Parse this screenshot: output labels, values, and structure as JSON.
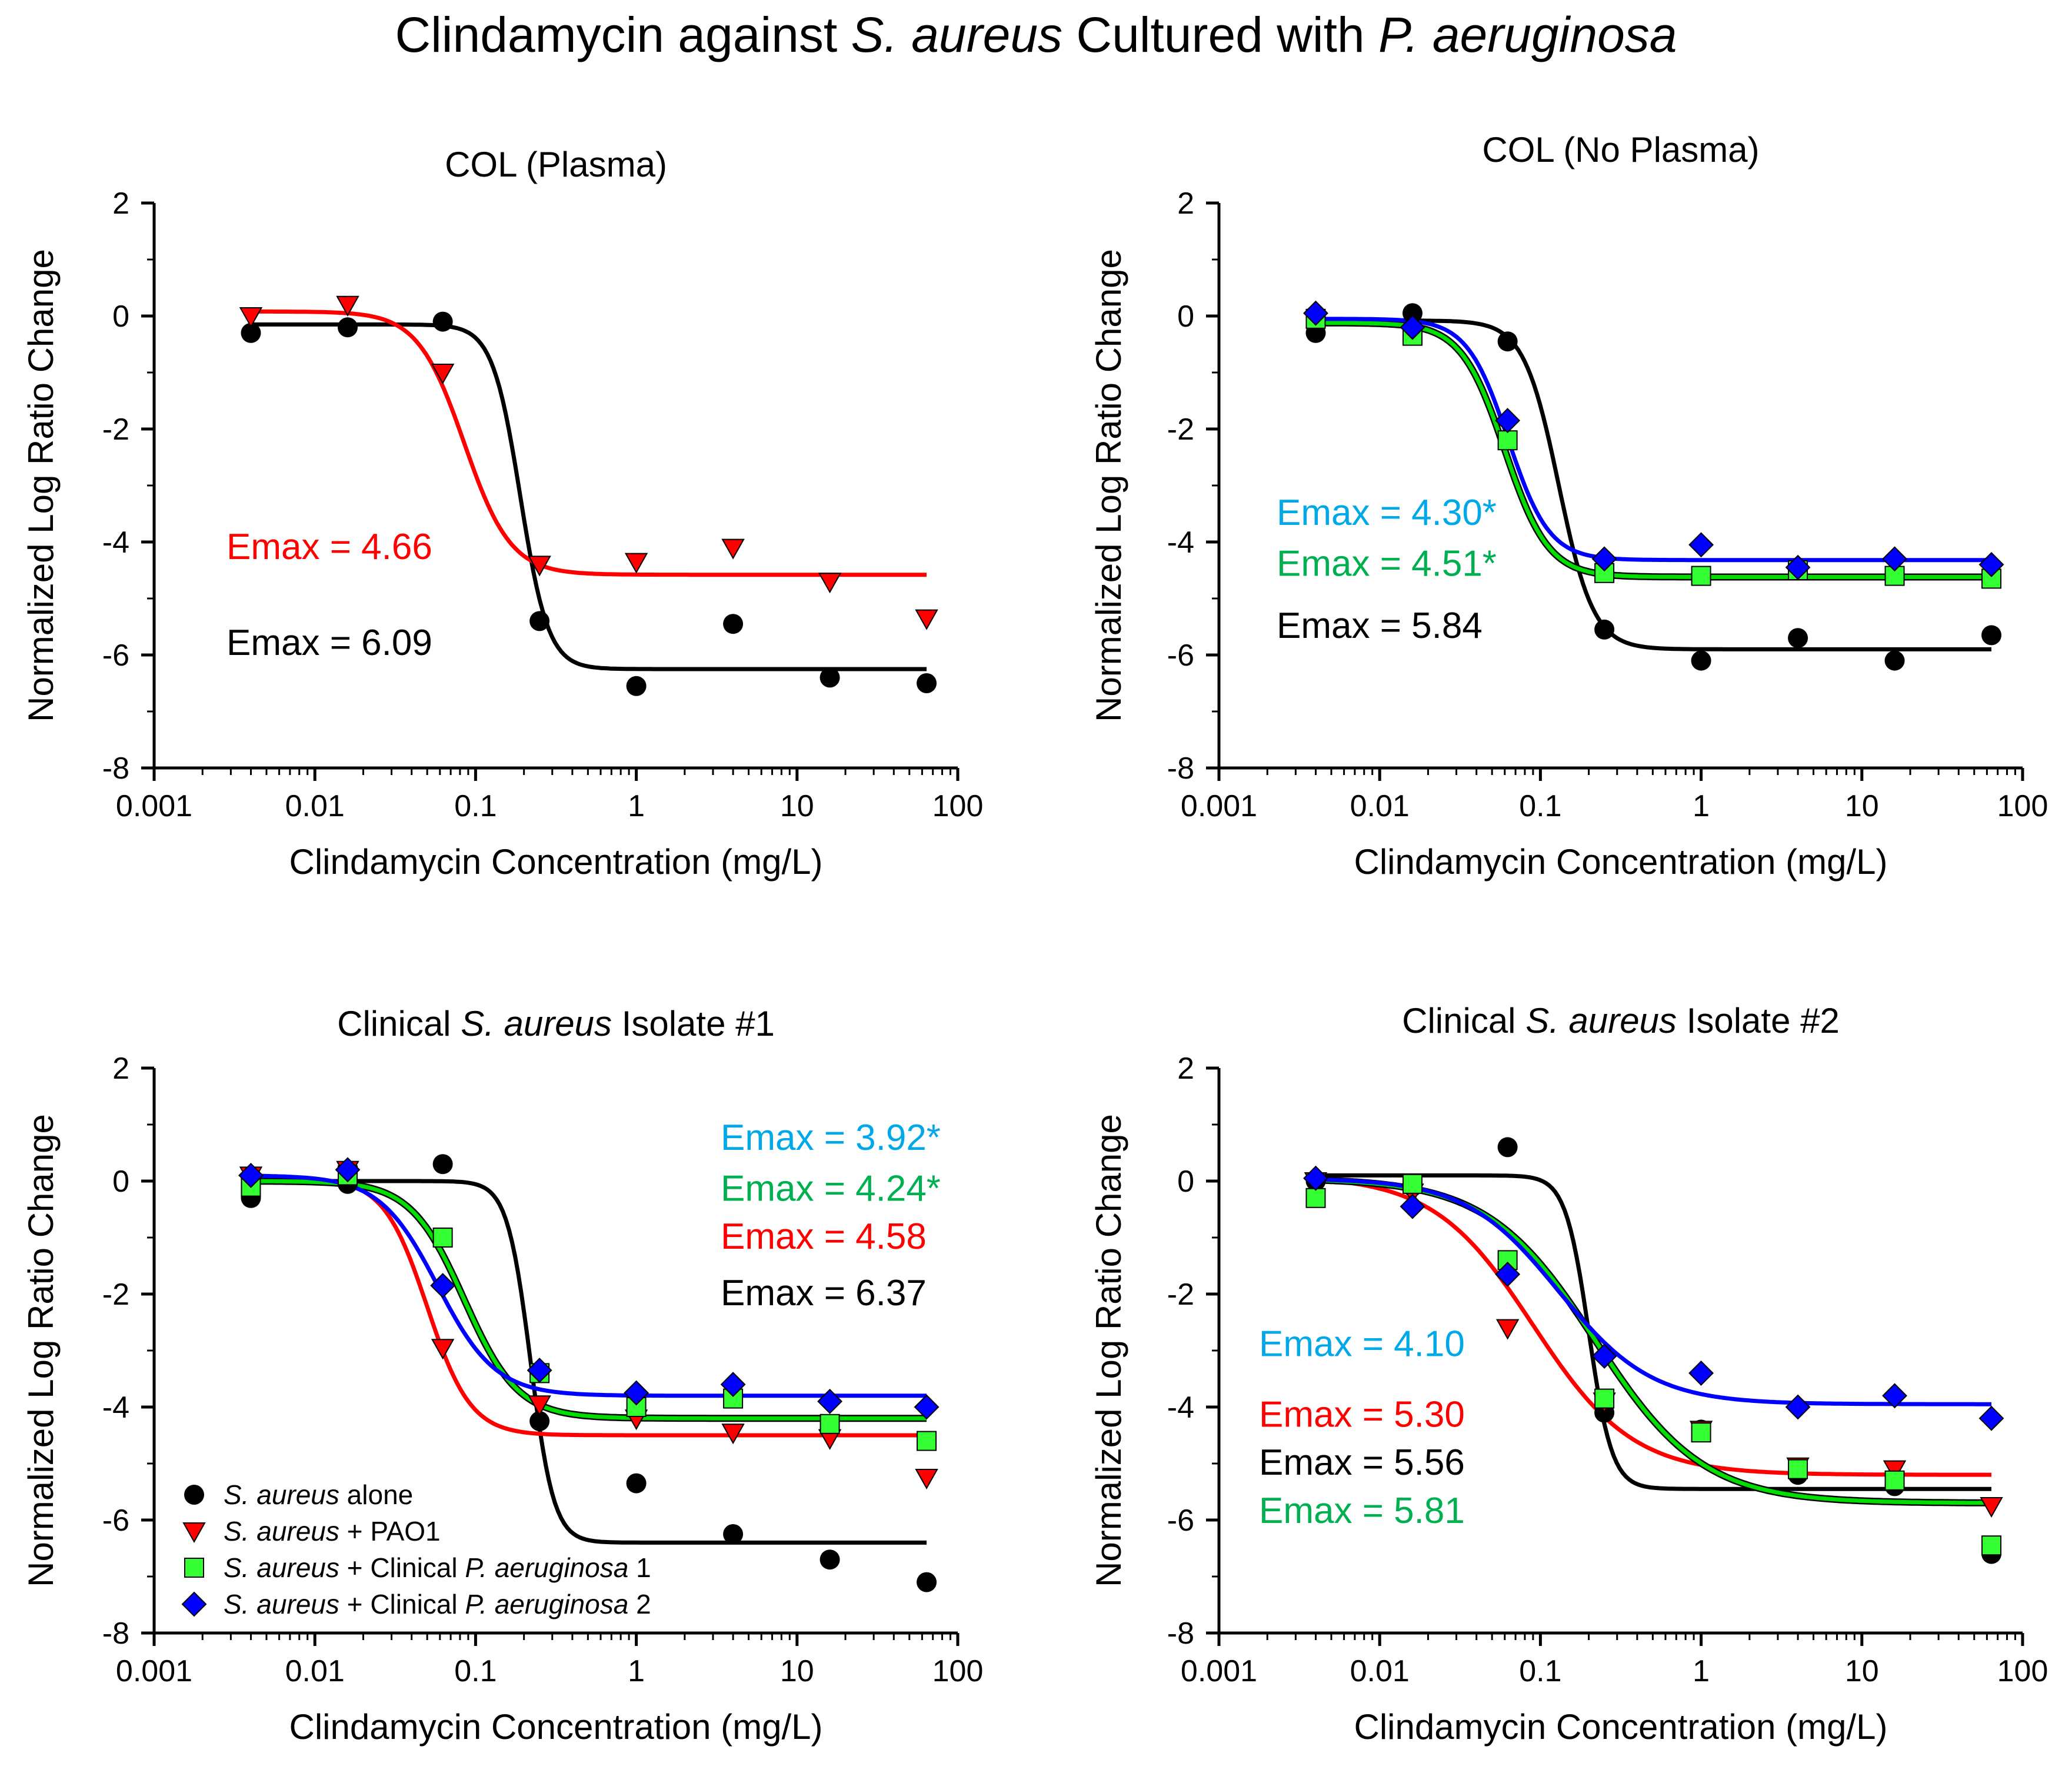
{
  "figure": {
    "title_parts": [
      {
        "text": "Clindamycin against ",
        "italic": false
      },
      {
        "text": "S. aureus",
        "italic": true
      },
      {
        "text": " Cultured with ",
        "italic": false
      },
      {
        "text": "P. aeruginosa",
        "italic": true
      }
    ]
  },
  "colors": {
    "black": "#000000",
    "red": "#ff0000",
    "green": "#00dd00",
    "blue": "#0000ff",
    "emax_cyan": "#00a8e8",
    "emax_green": "#00b050",
    "square_fill": "#33ff33"
  },
  "legend": {
    "items": [
      {
        "series": "alone",
        "marker": "circle",
        "parts": [
          {
            "text": "S. aureus",
            "italic": true
          },
          {
            "text": " alone",
            "italic": false
          }
        ]
      },
      {
        "series": "pao1",
        "marker": "triangle",
        "parts": [
          {
            "text": "S. aureus",
            "italic": true
          },
          {
            "text": " + PAO1",
            "italic": false
          }
        ]
      },
      {
        "series": "cpa1",
        "marker": "square",
        "parts": [
          {
            "text": "S. aureus",
            "italic": true
          },
          {
            "text": " + Clinical ",
            "italic": false
          },
          {
            "text": "P. aeruginosa",
            "italic": true
          },
          {
            "text": " 1",
            "italic": false
          }
        ]
      },
      {
        "series": "cpa2",
        "marker": "diamond",
        "parts": [
          {
            "text": "S. aureus",
            "italic": true
          },
          {
            "text": " + Clinical ",
            "italic": false
          },
          {
            "text": "P. aeruginosa",
            "italic": true
          },
          {
            "text": " 2",
            "italic": false
          }
        ]
      }
    ]
  },
  "chart_data": [
    {
      "type": "scatter",
      "title_parts": [
        {
          "text": "COL (Plasma)",
          "italic": false
        }
      ],
      "xlabel": "Clindamycin Concentration (mg/L)",
      "ylabel": "Normalized Log Ratio Change",
      "xscale": "log",
      "xlim": [
        0.001,
        100
      ],
      "ylim": [
        -8,
        2
      ],
      "x_ticks": [
        "0.001",
        "0.01",
        "0.1",
        "1",
        "10",
        "100"
      ],
      "y_ticks": [
        "2",
        "0",
        "-2",
        "-4",
        "-6",
        "-8"
      ],
      "series": [
        {
          "name": "alone",
          "marker": "circle",
          "x": [
            0.004,
            0.016,
            0.0625,
            0.25,
            1,
            4,
            16,
            64
          ],
          "y": [
            -0.3,
            -0.2,
            -0.1,
            -5.4,
            -6.55,
            -5.45,
            -6.4,
            -6.5
          ],
          "fit": {
            "top": -0.15,
            "bottom": -6.25,
            "ec50": 0.19,
            "hill": 5.0
          }
        },
        {
          "name": "pao1",
          "marker": "triangle",
          "x": [
            0.004,
            0.016,
            0.0625,
            0.25,
            1,
            4,
            16,
            64
          ],
          "y": [
            0.0,
            0.2,
            -1.0,
            -4.4,
            -4.35,
            -4.1,
            -4.7,
            -5.35
          ],
          "fit": {
            "top": 0.08,
            "bottom": -4.58,
            "ec50": 0.085,
            "hill": 3.0
          }
        }
      ],
      "emax_labels": [
        {
          "text": "Emax = 4.66",
          "series": "pao1",
          "y": -4.3
        },
        {
          "text": "Emax = 6.09",
          "series": "alone",
          "y": -6.0
        }
      ]
    },
    {
      "type": "scatter",
      "title_parts": [
        {
          "text": "COL (No Plasma)",
          "italic": false
        }
      ],
      "xlabel": "Clindamycin Concentration (mg/L)",
      "ylabel": "Normalized Log Ratio Change",
      "xscale": "log",
      "xlim": [
        0.001,
        100
      ],
      "ylim": [
        -8,
        2
      ],
      "x_ticks": [
        "0.001",
        "0.01",
        "0.1",
        "1",
        "10",
        "100"
      ],
      "y_ticks": [
        "2",
        "0",
        "-2",
        "-4",
        "-6",
        "-8"
      ],
      "series": [
        {
          "name": "alone",
          "marker": "circle",
          "x": [
            0.004,
            0.016,
            0.0625,
            0.25,
            1,
            4,
            16,
            64
          ],
          "y": [
            -0.3,
            0.05,
            -0.45,
            -5.55,
            -6.1,
            -5.7,
            -6.1,
            -5.65
          ],
          "fit": {
            "top": -0.08,
            "bottom": -5.9,
            "ec50": 0.13,
            "hill": 4.0
          }
        },
        {
          "name": "cpa1",
          "marker": "square",
          "x": [
            0.004,
            0.016,
            0.0625,
            0.25,
            1,
            4,
            16,
            64
          ],
          "y": [
            -0.05,
            -0.35,
            -2.2,
            -4.55,
            -4.6,
            -4.5,
            -4.6,
            -4.65
          ],
          "fit": {
            "top": -0.12,
            "bottom": -4.62,
            "ec50": 0.06,
            "hill": 3.2
          }
        },
        {
          "name": "cpa2",
          "marker": "diamond",
          "x": [
            0.004,
            0.016,
            0.0625,
            0.25,
            1,
            4,
            16,
            64
          ],
          "y": [
            0.05,
            -0.2,
            -1.85,
            -4.3,
            -4.05,
            -4.45,
            -4.3,
            -4.4
          ],
          "fit": {
            "top": -0.05,
            "bottom": -4.32,
            "ec50": 0.063,
            "hill": 3.4
          }
        }
      ],
      "emax_labels": [
        {
          "text": "Emax = 4.30*",
          "series": "cyan",
          "y": -3.7
        },
        {
          "text": "Emax = 4.51*",
          "series": "green",
          "y": -4.6
        },
        {
          "text": "Emax = 5.84",
          "series": "alone",
          "y": -5.7
        }
      ]
    },
    {
      "type": "scatter",
      "title_parts": [
        {
          "text": "Clinical ",
          "italic": false
        },
        {
          "text": "S. aureus",
          "italic": true
        },
        {
          "text": " Isolate #1",
          "italic": false
        }
      ],
      "xlabel": "Clindamycin Concentration (mg/L)",
      "ylabel": "Normalized Log Ratio Change",
      "xscale": "log",
      "xlim": [
        0.001,
        100
      ],
      "ylim": [
        -8,
        2
      ],
      "x_ticks": [
        "0.001",
        "0.01",
        "0.1",
        "1",
        "10",
        "100"
      ],
      "y_ticks": [
        "2",
        "0",
        "-2",
        "-4",
        "-6",
        "-8"
      ],
      "series": [
        {
          "name": "alone",
          "marker": "circle",
          "x": [
            0.004,
            0.016,
            0.0625,
            0.25,
            1,
            4,
            16,
            64
          ],
          "y": [
            -0.3,
            -0.05,
            0.3,
            -4.25,
            -5.35,
            -6.25,
            -6.7,
            -7.1
          ],
          "fit": {
            "top": 0.0,
            "bottom": -6.4,
            "ec50": 0.22,
            "hill": 6.0
          }
        },
        {
          "name": "pao1",
          "marker": "triangle",
          "x": [
            0.004,
            0.016,
            0.0625,
            0.25,
            1,
            4,
            16,
            64
          ],
          "y": [
            0.1,
            0.2,
            -2.95,
            -3.95,
            -4.2,
            -4.45,
            -4.55,
            -5.25
          ],
          "fit": {
            "top": 0.05,
            "bottom": -4.5,
            "ec50": 0.05,
            "hill": 3.2
          }
        },
        {
          "name": "cpa1",
          "marker": "square",
          "x": [
            0.004,
            0.016,
            0.0625,
            0.25,
            1,
            4,
            16,
            64
          ],
          "y": [
            -0.1,
            0.1,
            -1.0,
            -3.4,
            -4.0,
            -3.85,
            -4.3,
            -4.6
          ],
          "fit": {
            "top": 0.0,
            "bottom": -4.2,
            "ec50": 0.085,
            "hill": 2.6
          }
        },
        {
          "name": "cpa2",
          "marker": "diamond",
          "x": [
            0.004,
            0.016,
            0.0625,
            0.25,
            1,
            4,
            16,
            64
          ],
          "y": [
            0.1,
            0.2,
            -1.85,
            -3.35,
            -3.75,
            -3.6,
            -3.9,
            -4.0
          ],
          "fit": {
            "top": 0.1,
            "bottom": -3.8,
            "ec50": 0.058,
            "hill": 2.4
          }
        }
      ],
      "emax_labels": [
        {
          "text": "Emax = 3.92*",
          "series": "cyan",
          "y": 0.55
        },
        {
          "text": "Emax = 4.24*",
          "series": "green",
          "y": -0.35
        },
        {
          "text": "Emax = 4.58",
          "series": "pao1",
          "y": -1.2
        },
        {
          "text": "Emax = 6.37",
          "series": "alone",
          "y": -2.2
        }
      ]
    },
    {
      "type": "scatter",
      "title_parts": [
        {
          "text": "Clinical ",
          "italic": false
        },
        {
          "text": "S. aureus",
          "italic": true
        },
        {
          "text": " Isolate #2",
          "italic": false
        }
      ],
      "xlabel": "Clindamycin Concentration (mg/L)",
      "ylabel": "Normalized Log Ratio Change",
      "xscale": "log",
      "xlim": [
        0.001,
        100
      ],
      "ylim": [
        -8,
        2
      ],
      "x_ticks": [
        "0.001",
        "0.01",
        "0.1",
        "1",
        "10",
        "100"
      ],
      "y_ticks": [
        "2",
        "0",
        "-2",
        "-4",
        "-6",
        "-8"
      ],
      "series": [
        {
          "name": "alone",
          "marker": "circle",
          "x": [
            0.004,
            0.016,
            0.0625,
            0.25,
            1,
            4,
            16,
            64
          ],
          "y": [
            0.0,
            -0.1,
            0.6,
            -4.1,
            -4.4,
            -5.2,
            -5.4,
            -6.6
          ],
          "fit": {
            "top": 0.1,
            "bottom": -5.45,
            "ec50": 0.2,
            "hill": 6.0
          }
        },
        {
          "name": "pao1",
          "marker": "triangle",
          "x": [
            0.004,
            0.016,
            0.0625,
            0.25,
            1,
            4,
            16,
            64
          ],
          "y": [
            0.0,
            -0.2,
            -2.6,
            -3.9,
            -4.4,
            -5.05,
            -5.1,
            -5.75
          ],
          "fit": {
            "top": 0.1,
            "bottom": -5.2,
            "ec50": 0.09,
            "hill": 1.4
          }
        },
        {
          "name": "cpa1",
          "marker": "square",
          "x": [
            0.004,
            0.016,
            0.0625,
            0.25,
            1,
            4,
            16,
            64
          ],
          "y": [
            -0.3,
            -0.05,
            -1.4,
            -3.85,
            -4.45,
            -5.1,
            -5.3,
            -6.45
          ],
          "fit": {
            "top": 0.05,
            "bottom": -5.7,
            "ec50": 0.22,
            "hill": 1.3
          }
        },
        {
          "name": "cpa2",
          "marker": "diamond",
          "x": [
            0.004,
            0.016,
            0.0625,
            0.25,
            1,
            4,
            16,
            64
          ],
          "y": [
            0.05,
            -0.45,
            -1.65,
            -3.1,
            -3.4,
            -4.0,
            -3.8,
            -4.2
          ],
          "fit": {
            "top": 0.05,
            "bottom": -3.95,
            "ec50": 0.13,
            "hill": 1.5
          }
        }
      ],
      "emax_labels": [
        {
          "text": "Emax = 4.10",
          "series": "cyan",
          "y": -3.1
        },
        {
          "text": "Emax = 5.30",
          "series": "pao1",
          "y": -4.35
        },
        {
          "text": "Emax = 5.56",
          "series": "alone",
          "y": -5.2
        },
        {
          "text": "Emax = 5.81",
          "series": "green",
          "y": -6.05
        }
      ]
    }
  ]
}
